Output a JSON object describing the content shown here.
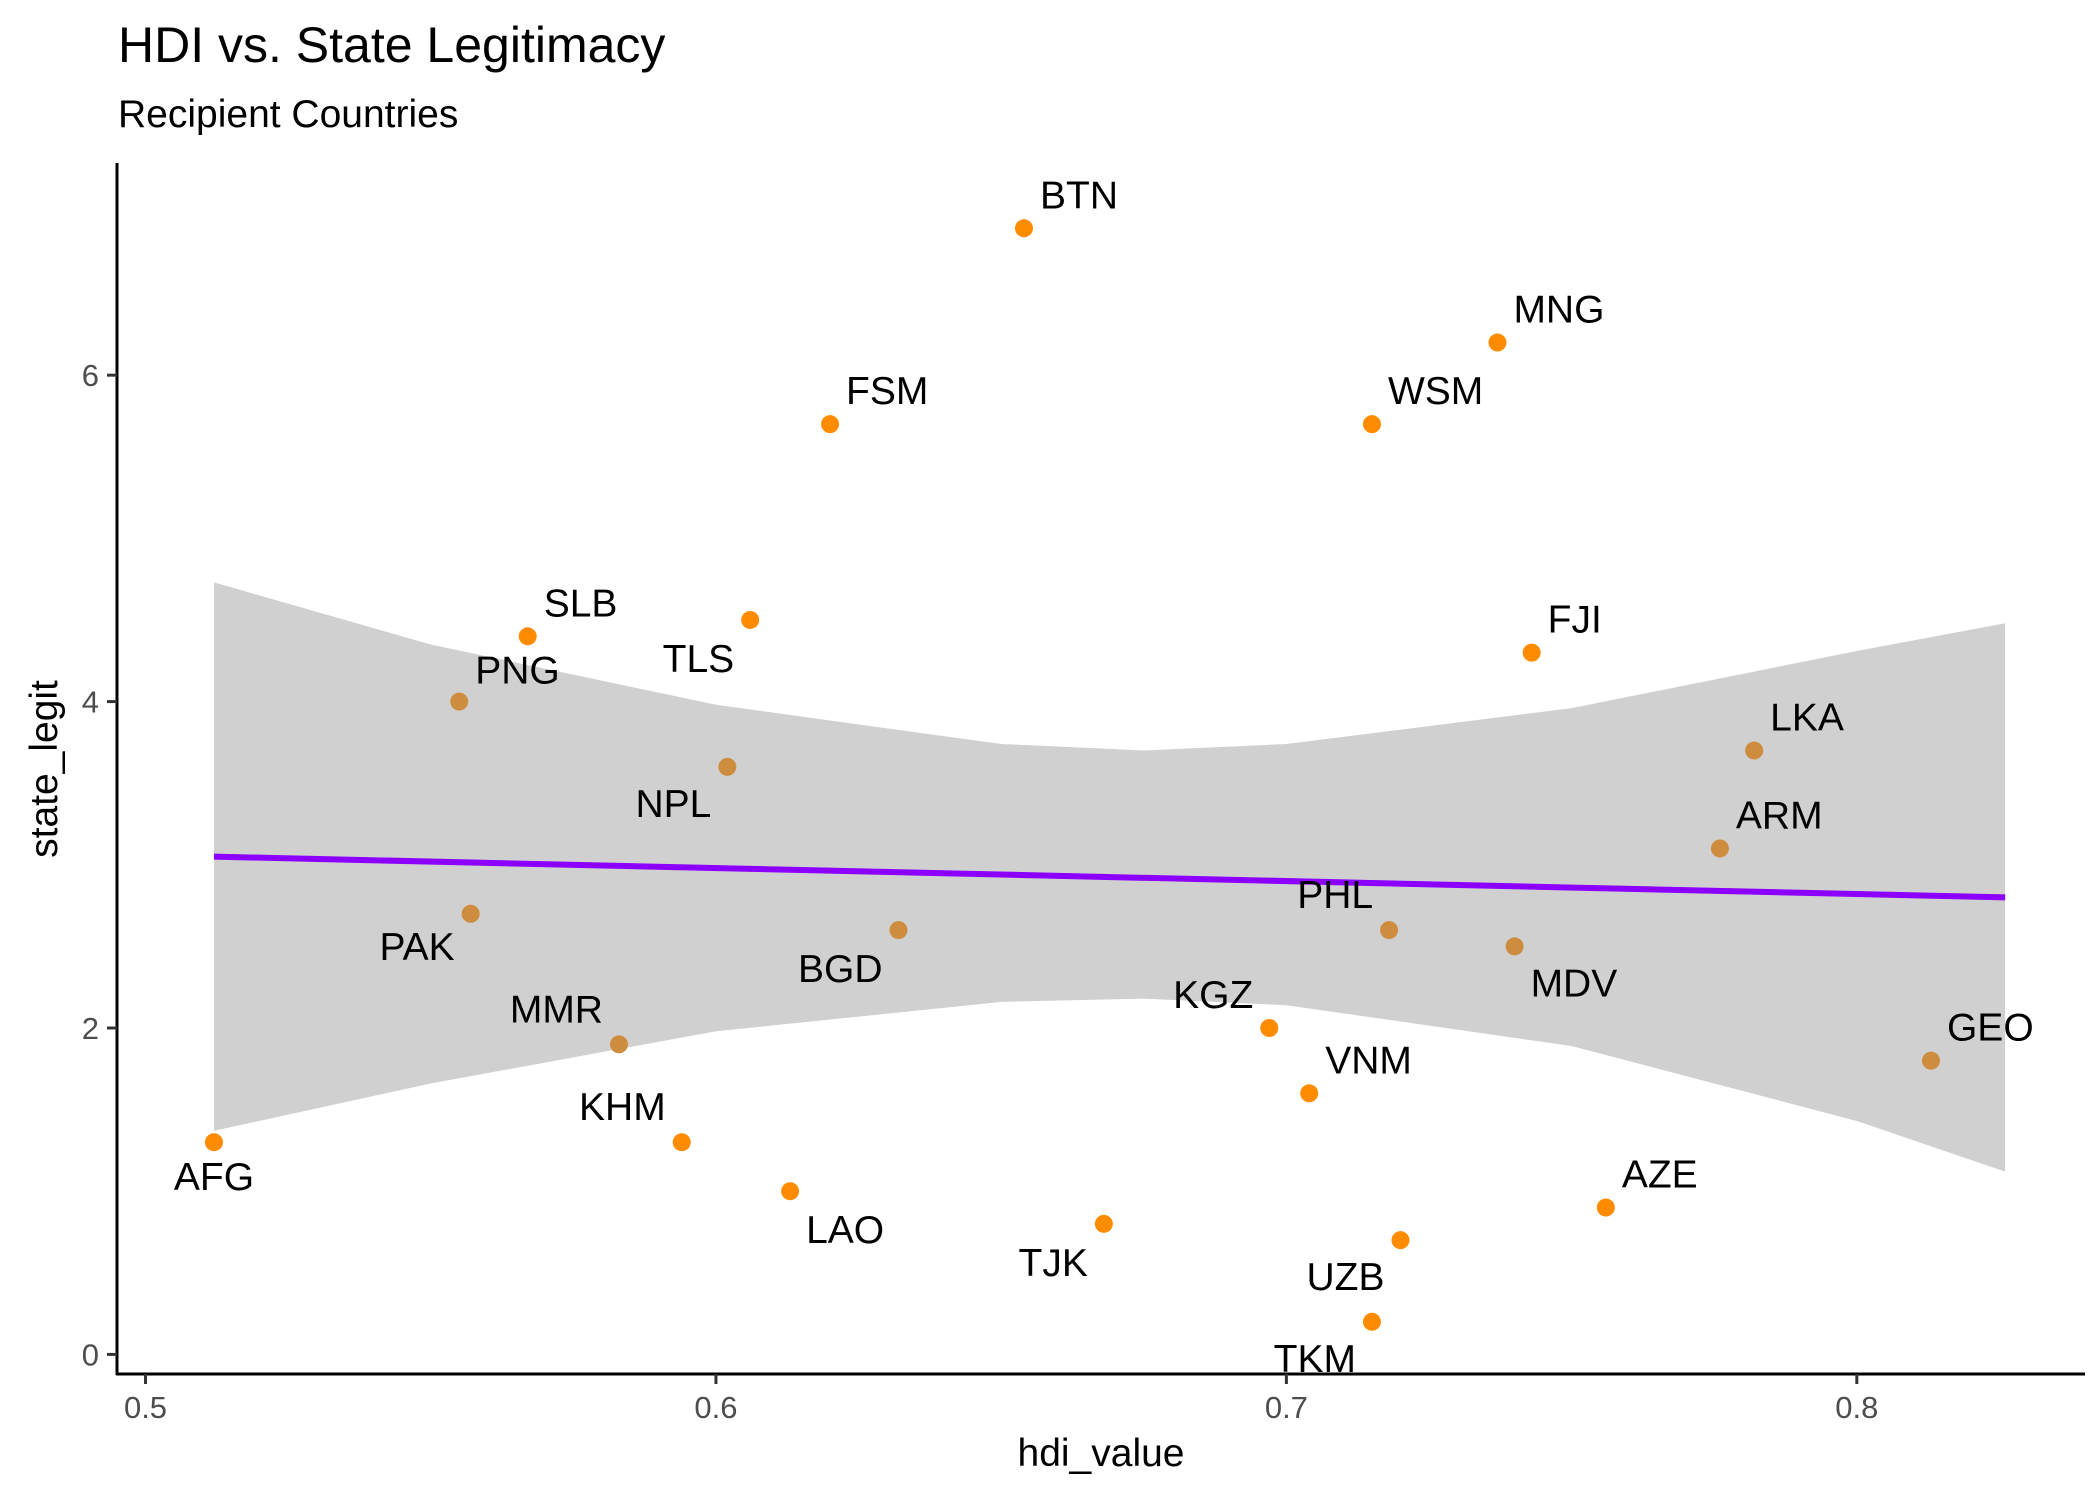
{
  "chart_data": {
    "type": "scatter",
    "title": "HDI vs. State Legitimacy",
    "subtitle": "Recipient Countries",
    "xlabel": "hdi_value",
    "ylabel": "state_legit",
    "xlim": [
      0.495,
      0.84
    ],
    "ylim": [
      -0.12,
      7.3
    ],
    "xticks": [
      0.5,
      0.6,
      0.7,
      0.8
    ],
    "xtick_labels": [
      "0.5",
      "0.6",
      "0.7",
      "0.8"
    ],
    "yticks": [
      0,
      2,
      4,
      6
    ],
    "ytick_labels": [
      "0",
      "2",
      "4",
      "6"
    ],
    "grid": false,
    "point_color": "#FF8C00",
    "band_point_color": "#CD8C3E",
    "smooth_color": "#8B00FF",
    "band_color": "#D0D0D0",
    "trend": {
      "x": [
        0.512,
        0.826
      ],
      "y": [
        3.05,
        2.8
      ]
    },
    "confidence_band": {
      "x": [
        0.512,
        0.55,
        0.6,
        0.65,
        0.675,
        0.7,
        0.75,
        0.8,
        0.826
      ],
      "upper": [
        4.73,
        4.35,
        3.98,
        3.74,
        3.7,
        3.74,
        3.96,
        4.31,
        4.48
      ],
      "lower": [
        1.37,
        1.66,
        1.98,
        2.16,
        2.18,
        2.14,
        1.89,
        1.43,
        1.12
      ]
    },
    "points": [
      {
        "label": "AFG",
        "x": 0.512,
        "y": 1.3
      },
      {
        "label": "PNG",
        "x": 0.555,
        "y": 4.0
      },
      {
        "label": "PAK",
        "x": 0.557,
        "y": 2.7
      },
      {
        "label": "SLB",
        "x": 0.567,
        "y": 4.4
      },
      {
        "label": "MMR",
        "x": 0.583,
        "y": 1.9
      },
      {
        "label": "KHM",
        "x": 0.594,
        "y": 1.3
      },
      {
        "label": "NPL",
        "x": 0.602,
        "y": 3.6
      },
      {
        "label": "TLS",
        "x": 0.606,
        "y": 4.5
      },
      {
        "label": "LAO",
        "x": 0.613,
        "y": 1.0
      },
      {
        "label": "FSM",
        "x": 0.62,
        "y": 5.7
      },
      {
        "label": "BGD",
        "x": 0.632,
        "y": 2.6
      },
      {
        "label": "BTN",
        "x": 0.654,
        "y": 6.9
      },
      {
        "label": "TJK",
        "x": 0.668,
        "y": 0.8
      },
      {
        "label": "KGZ",
        "x": 0.697,
        "y": 2.0
      },
      {
        "label": "VNM",
        "x": 0.704,
        "y": 1.6
      },
      {
        "label": "WSM",
        "x": 0.715,
        "y": 5.7
      },
      {
        "label": "TKM",
        "x": 0.715,
        "y": 0.2
      },
      {
        "label": "PHL",
        "x": 0.718,
        "y": 2.6
      },
      {
        "label": "UZB",
        "x": 0.72,
        "y": 0.7
      },
      {
        "label": "MNG",
        "x": 0.737,
        "y": 6.2
      },
      {
        "label": "MDV",
        "x": 0.74,
        "y": 2.5
      },
      {
        "label": "FJI",
        "x": 0.743,
        "y": 4.3
      },
      {
        "label": "AZE",
        "x": 0.756,
        "y": 0.9
      },
      {
        "label": "ARM",
        "x": 0.776,
        "y": 3.1
      },
      {
        "label": "LKA",
        "x": 0.782,
        "y": 3.7
      },
      {
        "label": "GEO",
        "x": 0.813,
        "y": 1.8
      }
    ]
  }
}
